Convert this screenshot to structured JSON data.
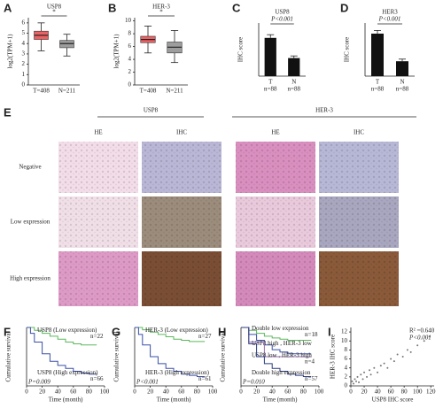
{
  "chart_data": [
    {
      "type": "box",
      "label": "A",
      "title": "USP8",
      "y_label": "log2(TPM+1)",
      "annotation": "*",
      "categories": [
        "T=408",
        "N=211"
      ],
      "boxes": [
        {
          "min": 3.3,
          "q1": 4.4,
          "median": 4.8,
          "q3": 5.2,
          "max": 6.0,
          "color": "#e8474a"
        },
        {
          "min": 2.8,
          "q1": 3.6,
          "median": 4.0,
          "q3": 4.3,
          "max": 4.9,
          "color": "#8c8c8c"
        }
      ],
      "ylim": [
        0,
        6.5
      ],
      "yticks": [
        0,
        1,
        2,
        3,
        4,
        5,
        6
      ]
    },
    {
      "type": "box",
      "label": "B",
      "title": "HER-3",
      "y_label": "log2(TPM+1)",
      "annotation": "*",
      "categories": [
        "T=408",
        "N=211"
      ],
      "boxes": [
        {
          "min": 5.0,
          "q1": 6.6,
          "median": 7.1,
          "q3": 7.6,
          "max": 9.2,
          "color": "#e8474a"
        },
        {
          "min": 3.5,
          "q1": 5.0,
          "median": 5.9,
          "q3": 6.7,
          "max": 8.5,
          "color": "#8c8c8c"
        }
      ],
      "ylim": [
        0,
        10.5
      ],
      "yticks": [
        0,
        2,
        4,
        6,
        8,
        10
      ]
    },
    {
      "type": "bar",
      "label": "C",
      "title": "USP8",
      "annotation": "P<0.001",
      "y_label": "IHC score",
      "categories": [
        "T",
        "N"
      ],
      "n_labels": [
        "n=88",
        "n=88"
      ],
      "values": [
        36,
        17
      ],
      "errors": [
        3,
        2
      ],
      "color": "#111111",
      "ylim": [
        0,
        50
      ]
    },
    {
      "type": "bar",
      "label": "D",
      "title": "HER3",
      "annotation": "P<0.001",
      "y_label": "IHC score",
      "categories": [
        "T",
        "N"
      ],
      "n_labels": [
        "n=88",
        "n=88"
      ],
      "values": [
        40,
        14
      ],
      "errors": [
        3,
        2
      ],
      "color": "#111111",
      "ylim": [
        0,
        50
      ]
    },
    {
      "type": "km",
      "label": "F",
      "x_label": "Time (month)",
      "y_label": "Cumulative survival",
      "p_label": "P=0.009",
      "xlim": [
        0,
        100
      ],
      "xticks": [
        0,
        20,
        40,
        60,
        80,
        100
      ],
      "ylim": [
        0,
        1
      ],
      "series": [
        {
          "name": "USP8 (Low expression)",
          "n_label": "n=22",
          "color": "#5cb85c",
          "x": [
            0,
            5,
            10,
            20,
            30,
            40,
            50,
            60,
            70,
            80,
            90
          ],
          "values": [
            1,
            1,
            0.95,
            0.9,
            0.85,
            0.8,
            0.75,
            0.72,
            0.7,
            0.7,
            0.7
          ]
        },
        {
          "name": "USP8 (High expression)",
          "n_label": "n=66",
          "color": "#3a4fa8",
          "x": [
            0,
            5,
            10,
            20,
            30,
            40,
            50,
            60,
            70,
            80,
            90
          ],
          "values": [
            1,
            0.9,
            0.75,
            0.55,
            0.42,
            0.35,
            0.3,
            0.25,
            0.22,
            0.2,
            0.2
          ]
        }
      ]
    },
    {
      "type": "km",
      "label": "G",
      "x_label": "Time (month)",
      "y_label": "Cumulative survival",
      "p_label": "P<0.001",
      "xlim": [
        0,
        100
      ],
      "xticks": [
        0,
        20,
        40,
        60,
        80,
        100
      ],
      "ylim": [
        0,
        1
      ],
      "series": [
        {
          "name": "HER-3 (Low expression)",
          "n_label": "n=27",
          "color": "#5cb85c",
          "x": [
            0,
            5,
            10,
            20,
            30,
            40,
            50,
            60,
            70,
            80,
            90
          ],
          "values": [
            1,
            1,
            0.96,
            0.92,
            0.88,
            0.84,
            0.8,
            0.78,
            0.76,
            0.76,
            0.76
          ]
        },
        {
          "name": "HER-3 (High expression)",
          "n_label": "n=61",
          "color": "#3a4fa8",
          "x": [
            0,
            5,
            10,
            20,
            30,
            40,
            50,
            60,
            70,
            80,
            90
          ],
          "values": [
            1,
            0.88,
            0.7,
            0.5,
            0.38,
            0.3,
            0.25,
            0.2,
            0.18,
            0.16,
            0.16
          ]
        }
      ]
    },
    {
      "type": "km",
      "label": "H",
      "x_label": "Time (month)",
      "y_label": "Cumulative survival",
      "p_label": "P=0.010",
      "xlim": [
        0,
        100
      ],
      "xticks": [
        0,
        20,
        40,
        60,
        80,
        100
      ],
      "ylim": [
        0,
        1
      ],
      "series": [
        {
          "name": "Double low expression",
          "n_label": "n=18",
          "color": "#5cb85c",
          "x": [
            0,
            10,
            20,
            30,
            40,
            50,
            60,
            70,
            80,
            90
          ],
          "values": [
            1,
            0.95,
            0.9,
            0.85,
            0.82,
            0.8,
            0.78,
            0.78,
            0.78,
            0.78
          ]
        },
        {
          "name": "USP8 high , HER-3 low",
          "color": "#3a4fa8",
          "x": [
            0,
            10,
            20,
            30,
            40,
            50,
            60,
            70,
            80,
            90
          ],
          "values": [
            1,
            0.88,
            0.78,
            0.7,
            0.62,
            0.58,
            0.55,
            0.55,
            0.55,
            0.55
          ]
        },
        {
          "name": "USP8 low , HER-3 high",
          "n_label": "n=4",
          "color": "#9a6fb0",
          "x": [
            0,
            10,
            20,
            30,
            40,
            50,
            60,
            70,
            80,
            90
          ],
          "values": [
            1,
            0.75,
            0.75,
            0.5,
            0.5,
            0.5,
            0.5,
            0.5,
            0.5,
            0.5
          ]
        },
        {
          "name": "Double high expression",
          "n_label": "n=57",
          "color": "#2b3a80",
          "x": [
            0,
            10,
            20,
            30,
            40,
            50,
            60,
            70,
            80,
            90
          ],
          "values": [
            1,
            0.72,
            0.5,
            0.38,
            0.3,
            0.25,
            0.2,
            0.18,
            0.16,
            0.16
          ]
        }
      ]
    },
    {
      "type": "scatter",
      "label": "I",
      "x_label": "USP8 IHC score",
      "y_label": "HER-3 IHC score",
      "annotation": "R² =0.640",
      "p_label": "P<0.001",
      "color": "#777777",
      "xlim": [
        0,
        125
      ],
      "xticks": [
        0,
        20,
        40,
        60,
        80,
        100,
        120
      ],
      "ylim": [
        0,
        13
      ],
      "yticks": [
        0,
        2,
        4,
        6,
        8,
        10,
        12
      ],
      "x": [
        2,
        4,
        6,
        8,
        10,
        12,
        15,
        18,
        20,
        24,
        28,
        30,
        35,
        40,
        45,
        50,
        55,
        60,
        65,
        70,
        78,
        85,
        90,
        100,
        110,
        118
      ],
      "y": [
        1,
        0.5,
        1.5,
        1,
        2,
        0.8,
        2.5,
        1.5,
        3,
        2,
        3.5,
        2.5,
        4,
        3,
        4.5,
        5,
        4,
        6,
        5.5,
        7,
        6.5,
        8,
        7.5,
        9,
        10,
        11
      ]
    }
  ],
  "figure_e": {
    "label": "E",
    "groups": [
      "USP8",
      "HER-3"
    ],
    "columns": [
      "HE",
      "IHC",
      "HE",
      "IHC"
    ],
    "rows": [
      "Negative",
      "Low expression",
      "High expression"
    ]
  }
}
